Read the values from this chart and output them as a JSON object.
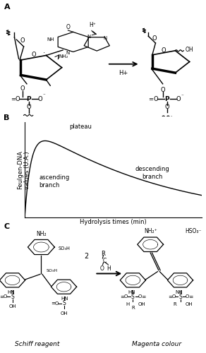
{
  "panel_A_label": "A",
  "panel_B_label": "B",
  "panel_C_label": "C",
  "panel_label_fontsize": 8,
  "panel_label_fontweight": "bold",
  "graph_ylabel": "Feulgen-DNA\nvalues (U.A.)",
  "graph_xlabel": "Hydrolysis times (min)",
  "graph_ylabel_fontsize": 6,
  "graph_xlabel_fontsize": 6,
  "graph_label_plateau": "plateau",
  "graph_label_ascending": "ascending\nbranch",
  "graph_label_descending": "descending\nbranch",
  "graph_annotation_fontsize": 6,
  "schiff_label": "Schiff reagent",
  "magenta_label": "Magenta colour",
  "chem_label_fontsize": 6.5,
  "background_color": "#ffffff",
  "line_color": "#444444",
  "text_color": "#000000",
  "lw_struct": 1.0,
  "lw_arrow": 1.2
}
